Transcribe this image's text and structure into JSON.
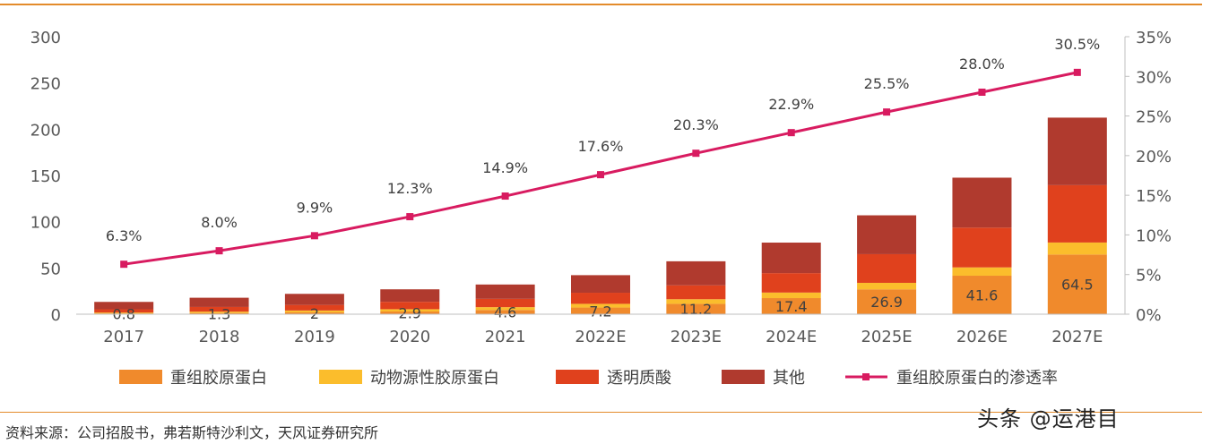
{
  "chart_data": {
    "type": "bar",
    "stacked": true,
    "categories": [
      "2017",
      "2018",
      "2019",
      "2020",
      "2021",
      "2022E",
      "2023E",
      "2024E",
      "2025E",
      "2026E",
      "2027E"
    ],
    "series": [
      {
        "name": "重组胶原蛋白",
        "color": "#f08a2c",
        "values": [
          0.8,
          1.3,
          2,
          2.9,
          4.6,
          7.2,
          11.2,
          17.4,
          26.9,
          41.6,
          64.5
        ],
        "labels": [
          "0.8",
          "1.3",
          "2",
          "2.9",
          "4.6",
          "7.2",
          "11.2",
          "17.4",
          "26.9",
          "41.6",
          "64.5"
        ]
      },
      {
        "name": "动物源性胶原蛋白",
        "color": "#fbbd2c",
        "values": [
          1,
          1.5,
          2,
          2.5,
          3,
          4,
          5,
          6,
          7,
          9,
          13
        ]
      },
      {
        "name": "透明质酸",
        "color": "#e0411d",
        "values": [
          3.5,
          5,
          6,
          8,
          9,
          12,
          15,
          21,
          31,
          43,
          62
        ]
      },
      {
        "name": "其他",
        "color": "#b03a2e",
        "values": [
          8,
          10,
          12,
          13.5,
          15.5,
          19,
          26,
          33,
          42,
          54,
          73
        ]
      }
    ],
    "line_series": {
      "name": "重组胶原蛋白的渗透率",
      "color": "#d81b60",
      "axis": "right",
      "values": [
        6.3,
        8.0,
        9.9,
        12.3,
        14.9,
        17.6,
        20.3,
        22.9,
        25.5,
        28.0,
        30.5
      ],
      "labels": [
        "6.3%",
        "8.0%",
        "9.9%",
        "12.3%",
        "14.9%",
        "17.6%",
        "20.3%",
        "22.9%",
        "25.5%",
        "28.0%",
        "30.5%"
      ]
    },
    "y_left": {
      "ylim": [
        0,
        300
      ],
      "ticks": [
        "0",
        "50",
        "100",
        "150",
        "200",
        "250",
        "300"
      ]
    },
    "y_right": {
      "ylim": [
        0,
        35
      ],
      "ticks": [
        "0%",
        "5%",
        "10%",
        "15%",
        "20%",
        "25%",
        "30%",
        "35%"
      ]
    },
    "grid": false,
    "legend_position": "bottom",
    "title": "",
    "xlabel": "",
    "ylabel": ""
  },
  "source_note": "资料来源：公司招股书，弗若斯特沙利文，天风证券研究所",
  "watermark": "头条 @运港目"
}
